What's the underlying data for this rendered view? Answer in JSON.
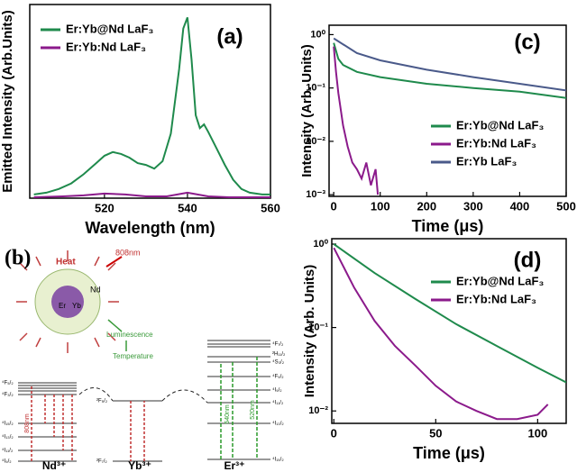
{
  "chart_data": [
    {
      "type": "line",
      "panel_label": "(a)",
      "x_label": "Wavelength (nm)",
      "y_label": "Emitted Intensity (Arb.Units)",
      "xlim": [
        502,
        560
      ],
      "xticks": [
        520,
        540,
        560
      ],
      "ylim": [
        0,
        1.05
      ],
      "log_y": false,
      "legend": "upper-left",
      "series": [
        {
          "name": "Er:Yb@Nd LaF₃",
          "color": "#1f8a4c",
          "x": [
            503,
            506,
            509,
            512,
            515,
            518,
            520,
            522,
            524,
            526,
            528,
            530,
            532,
            534,
            536,
            538,
            539,
            540,
            541,
            542,
            543,
            544,
            545,
            547,
            549,
            551,
            553,
            555,
            558,
            560
          ],
          "values": [
            0.02,
            0.03,
            0.05,
            0.08,
            0.13,
            0.19,
            0.23,
            0.25,
            0.24,
            0.22,
            0.19,
            0.18,
            0.16,
            0.2,
            0.35,
            0.7,
            0.92,
            0.98,
            0.75,
            0.45,
            0.38,
            0.4,
            0.36,
            0.27,
            0.18,
            0.1,
            0.05,
            0.03,
            0.02,
            0.02
          ]
        },
        {
          "name": "Er:Yb:Nd LaF₃",
          "color": "#8b1a8b",
          "x": [
            503,
            510,
            515,
            520,
            525,
            530,
            535,
            540,
            545,
            550,
            560
          ],
          "values": [
            0.005,
            0.01,
            0.015,
            0.025,
            0.02,
            0.01,
            0.01,
            0.03,
            0.01,
            0.005,
            0.005
          ]
        }
      ]
    },
    {
      "type": "line",
      "panel_label": "(c)",
      "x_label": "Time (μs)",
      "y_label": "Intensity (Arb. Units)",
      "xlim": [
        -10,
        500
      ],
      "xticks": [
        0,
        100,
        200,
        300,
        400,
        500
      ],
      "ylim": [
        0.00093,
        1.5
      ],
      "log_y": true,
      "yticks": [
        {
          "value": 0.001,
          "label": "10⁻³"
        },
        {
          "value": 0.01,
          "label": "10⁻²"
        },
        {
          "value": 0.1,
          "label": "10⁻¹"
        },
        {
          "value": 1,
          "label": "10⁰"
        }
      ],
      "legend": "lower-right",
      "series": [
        {
          "name": "Er:Yb@Nd LaF₃",
          "color": "#1f8a4c",
          "x": [
            0,
            10,
            20,
            50,
            100,
            200,
            300,
            400,
            500
          ],
          "values": [
            0.7,
            0.35,
            0.27,
            0.2,
            0.16,
            0.12,
            0.1,
            0.085,
            0.065
          ]
        },
        {
          "name": "Er:Yb:Nd LaF₃",
          "color": "#8b1a8b",
          "x": [
            0,
            5,
            10,
            20,
            30,
            40,
            50,
            60,
            70,
            80,
            90,
            95
          ],
          "values": [
            0.6,
            0.2,
            0.08,
            0.02,
            0.008,
            0.004,
            0.003,
            0.002,
            0.004,
            0.0015,
            0.003,
            0.001
          ]
        },
        {
          "name": "Er:Yb LaF₃",
          "color": "#4a5a8a",
          "x": [
            0,
            50,
            100,
            200,
            300,
            400,
            500
          ],
          "values": [
            0.85,
            0.45,
            0.33,
            0.22,
            0.16,
            0.12,
            0.09
          ]
        }
      ]
    },
    {
      "type": "line",
      "panel_label": "(d)",
      "x_label": "Time (μs)",
      "y_label": "Intensity (Arb. Units)",
      "xlim": [
        -1,
        114
      ],
      "xticks": [
        0,
        50,
        100
      ],
      "ylim": [
        0.0071,
        1.16
      ],
      "log_y": true,
      "yticks": [
        {
          "value": 0.01,
          "label": "10⁻²"
        },
        {
          "value": 0.1,
          "label": "10⁻¹"
        },
        {
          "value": 1,
          "label": "10⁰"
        }
      ],
      "legend": "upper-right",
      "series": [
        {
          "name": "Er:Yb@Nd LaF₃",
          "color": "#1f8a4c",
          "x": [
            0,
            20,
            40,
            60,
            80,
            100,
            114
          ],
          "values": [
            1,
            0.45,
            0.22,
            0.11,
            0.06,
            0.033,
            0.022
          ]
        },
        {
          "name": "Er:Yb:Nd LaF₃",
          "color": "#8b1a8b",
          "x": [
            0,
            10,
            20,
            30,
            40,
            50,
            60,
            70,
            80,
            90,
            100,
            105
          ],
          "values": [
            0.9,
            0.3,
            0.12,
            0.06,
            0.035,
            0.02,
            0.013,
            0.01,
            0.008,
            0.008,
            0.009,
            0.012
          ]
        }
      ]
    }
  ],
  "diagram": {
    "label": "(b)",
    "heat": "Heat",
    "laser": "808nm",
    "nd": "Nd",
    "er": "Er",
    "yb": "Yb",
    "luminescence": "Luminescence",
    "temperature": "Temperature",
    "nd_levels": [
      "⁴F₅/₂",
      "⁴F₃/₂",
      "⁴I₁₅/₂",
      "⁴I₁₃/₂",
      "⁴I₁₁/₂",
      "⁴I₉/₂"
    ],
    "yb_levels": [
      "²F₅/₂",
      "²F₇/₂"
    ],
    "er_levels": [
      "⁴F₇/₂",
      "²H₁₁/₂",
      "⁴S₃/₂",
      "⁴F₉/₂",
      "⁴I₉/₂",
      "⁴I₁₁/₂",
      "⁴I₁₃/₂",
      "⁴I₁₅/₂"
    ],
    "transitions": [
      "808nm",
      "540nm",
      "520nm"
    ],
    "ions": [
      "Nd³⁺",
      "Yb³⁺",
      "Er³⁺"
    ]
  }
}
